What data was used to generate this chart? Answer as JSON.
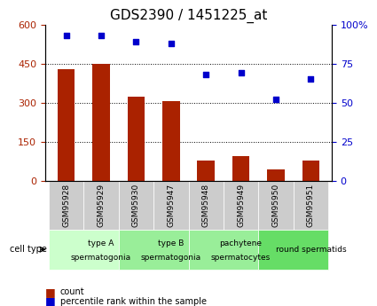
{
  "title": "GDS2390 / 1451225_at",
  "samples": [
    "GSM95928",
    "GSM95929",
    "GSM95930",
    "GSM95947",
    "GSM95948",
    "GSM95949",
    "GSM95950",
    "GSM95951"
  ],
  "counts": [
    430,
    450,
    325,
    305,
    80,
    95,
    45,
    80
  ],
  "percentiles": [
    93,
    93,
    89,
    88,
    68,
    69,
    52,
    65
  ],
  "ylim_left": [
    0,
    600
  ],
  "ylim_right": [
    0,
    100
  ],
  "yticks_left": [
    0,
    150,
    300,
    450,
    600
  ],
  "ytick_labels_left": [
    "0",
    "150",
    "300",
    "450",
    "600"
  ],
  "yticks_right": [
    0,
    25,
    50,
    75,
    100
  ],
  "ytick_labels_right": [
    "0",
    "25",
    "50",
    "75",
    "100%"
  ],
  "bar_color": "#aa2200",
  "dot_color": "#0000cc",
  "grid_color": "#000000",
  "cell_types": [
    {
      "label": "type A\nspermatogonia",
      "start": 0,
      "end": 2,
      "color": "#ccffcc"
    },
    {
      "label": "type B\nspermatogonia",
      "start": 2,
      "end": 4,
      "color": "#99ee99"
    },
    {
      "label": "pachytene\nspermatocytes",
      "start": 4,
      "end": 6,
      "color": "#99ee99"
    },
    {
      "label": "round spermatids",
      "start": 6,
      "end": 8,
      "color": "#66dd66"
    }
  ],
  "sample_bg_color": "#cccccc",
  "legend_count_color": "#aa2200",
  "legend_pct_color": "#0000cc",
  "cell_type_label": "cell type",
  "legend_count": "count",
  "legend_pct": "percentile rank within the sample",
  "title_fontsize": 11,
  "axis_fontsize": 8,
  "tick_fontsize": 8
}
